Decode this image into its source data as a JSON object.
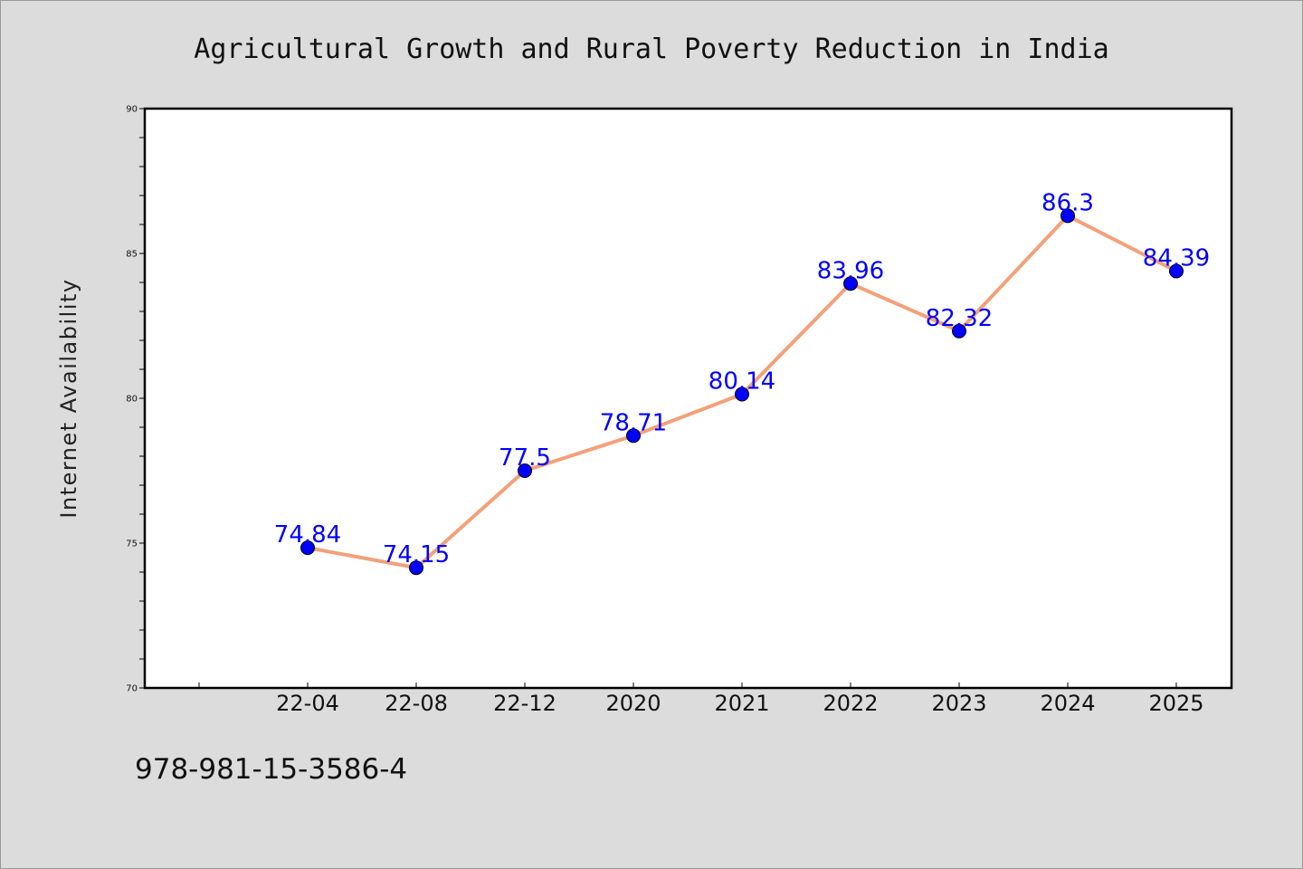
{
  "chart_data": {
    "type": "line",
    "title": "Agricultural Growth and Rural Poverty Reduction in India",
    "xlabel": "",
    "ylabel": "Internet Availability",
    "categories": [
      "22-04",
      "22-08",
      "22-12",
      "2020",
      "2021",
      "2022",
      "2023",
      "2024",
      "2025"
    ],
    "values": [
      74.84,
      74.15,
      77.5,
      78.71,
      80.14,
      83.96,
      82.32,
      86.3,
      84.39
    ],
    "data_labels": [
      "74.84",
      "74.15",
      "77.5",
      "78.71",
      "80.14",
      "83.96",
      "82.32",
      "86.3",
      "84.39"
    ],
    "ylim": [
      70,
      90
    ],
    "yticks": [
      70,
      75,
      80,
      85,
      90
    ],
    "grid": false,
    "line_color": "#f4a07a",
    "marker_color": "#0000ff",
    "label_color": "#0000ff"
  },
  "footer": {
    "isbn": "978-981-15-3586-4"
  }
}
